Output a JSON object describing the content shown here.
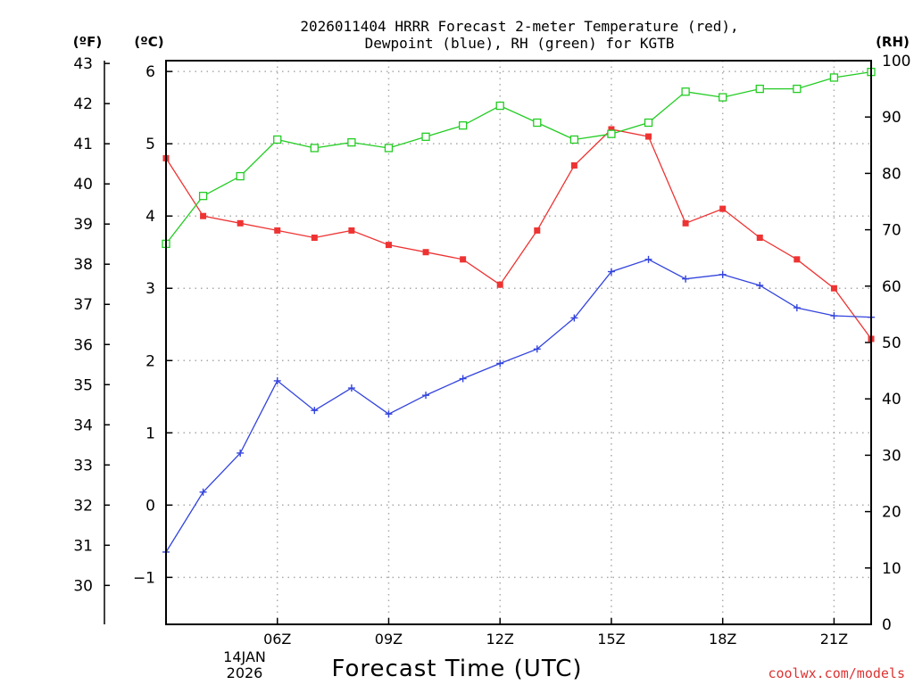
{
  "chart_data": {
    "type": "line",
    "title_line1": "2026011404 HRRR Forecast 2-meter Temperature (red),",
    "title_line2": "Dewpoint (blue), RH (green) for KGTB",
    "unit_left_f": "(ºF)",
    "unit_left_c": "(ºC)",
    "unit_right": "(RH)",
    "xlabel": "Forecast Time (UTC)",
    "credit": "coolwx.com/models",
    "x_hours": [
      3,
      4,
      5,
      6,
      7,
      8,
      9,
      10,
      11,
      12,
      13,
      14,
      15,
      16,
      17,
      18,
      19,
      20,
      21,
      22
    ],
    "x_range": [
      3,
      22
    ],
    "x_ticks": [
      {
        "hour": 6,
        "label": "06Z"
      },
      {
        "hour": 9,
        "label": "09Z"
      },
      {
        "hour": 12,
        "label": "12Z"
      },
      {
        "hour": 15,
        "label": "15Z"
      },
      {
        "hour": 18,
        "label": "18Z"
      },
      {
        "hour": 21,
        "label": "21Z"
      }
    ],
    "date_label_line1": "14JAN",
    "date_label_line2": "2026",
    "celsius_range": [
      -1.65,
      6.15
    ],
    "celsius_ticks": [
      -1,
      0,
      1,
      2,
      3,
      4,
      5,
      6
    ],
    "fahrenheit_ticks": [
      30,
      31,
      32,
      33,
      34,
      35,
      36,
      37,
      38,
      39,
      40,
      41,
      42,
      43
    ],
    "rh_range": [
      0,
      100
    ],
    "rh_ticks": [
      0,
      10,
      20,
      30,
      40,
      50,
      60,
      70,
      80,
      90,
      100
    ],
    "series": [
      {
        "name": "2-meter Temperature",
        "axis": "celsius",
        "color": "#ee3333",
        "marker": "filled-square",
        "values": [
          4.8,
          4.0,
          3.9,
          3.8,
          3.7,
          3.8,
          3.6,
          3.5,
          3.4,
          3.05,
          3.8,
          4.7,
          5.2,
          5.1,
          3.9,
          4.1,
          3.7,
          3.4,
          3.0,
          2.3
        ]
      },
      {
        "name": "Dewpoint",
        "axis": "celsius",
        "color": "#3344dd",
        "marker": "plus",
        "values": [
          -0.65,
          0.18,
          0.72,
          1.72,
          1.31,
          1.62,
          1.26,
          1.52,
          1.75,
          1.96,
          2.16,
          2.59,
          3.23,
          3.4,
          3.13,
          3.19,
          3.04,
          2.73,
          2.62,
          2.6
        ]
      },
      {
        "name": "RH",
        "axis": "rh",
        "color": "#22cc22",
        "marker": "open-square",
        "values": [
          67.5,
          76,
          79.5,
          86,
          84.5,
          85.5,
          84.5,
          86.5,
          88.5,
          92,
          89,
          86,
          87,
          89,
          94.5,
          93.5,
          95,
          95,
          97,
          98
        ]
      }
    ]
  }
}
